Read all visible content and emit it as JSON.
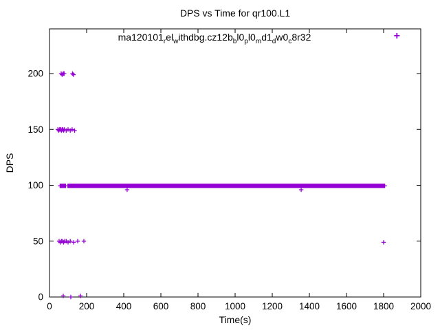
{
  "chart_data": {
    "type": "scatter",
    "title": "DPS vs Time for qr100.L1",
    "xlabel": "Time(s)",
    "ylabel": "DPS",
    "xlim": [
      0,
      2000
    ],
    "ylim": [
      0,
      240
    ],
    "xticks": [
      0,
      200,
      400,
      600,
      800,
      1000,
      1200,
      1400,
      1600,
      1800,
      2000
    ],
    "yticks": [
      0,
      50,
      100,
      150,
      200
    ],
    "grid": false,
    "axis_color": "#000000",
    "legend": {
      "position": "top-center-inside",
      "label_plain": "ma120101_rel_withdbg.cz12b_bl0_pl0_md1_dw0_c8r32",
      "label_parts": [
        {
          "text": "ma120101",
          "sub": false
        },
        {
          "text": "r",
          "sub": true
        },
        {
          "text": "el",
          "sub": false
        },
        {
          "text": "w",
          "sub": true
        },
        {
          "text": "ithdbg.cz12b",
          "sub": false
        },
        {
          "text": "b",
          "sub": true
        },
        {
          "text": "l0",
          "sub": false
        },
        {
          "text": "p",
          "sub": true
        },
        {
          "text": "l0",
          "sub": false
        },
        {
          "text": "m",
          "sub": true
        },
        {
          "text": "d1",
          "sub": false
        },
        {
          "text": "d",
          "sub": true
        },
        {
          "text": "w0",
          "sub": false
        },
        {
          "text": "c",
          "sub": true
        },
        {
          "text": "8r32",
          "sub": false
        }
      ]
    },
    "series": [
      {
        "name": "ma120101_rel_withdbg.cz12b_bl0_pl0_md1_dw0_c8r32",
        "color": "#9400D3",
        "marker": "plus",
        "dense_band_segments": [
          {
            "y": 99.5,
            "x_from": 57,
            "x_to": 88,
            "x_step": 3
          },
          {
            "y": 99.5,
            "x_from": 99,
            "x_to": 1806,
            "x_step": 3
          }
        ],
        "points": [
          [
            63,
            200
          ],
          [
            68,
            199
          ],
          [
            74,
            200
          ],
          [
            79,
            200
          ],
          [
            124,
            200
          ],
          [
            129,
            199
          ],
          [
            45,
            150
          ],
          [
            50,
            149
          ],
          [
            55,
            150
          ],
          [
            60,
            150
          ],
          [
            64,
            149
          ],
          [
            68,
            150
          ],
          [
            72,
            150
          ],
          [
            76,
            149
          ],
          [
            80,
            150
          ],
          [
            90,
            149
          ],
          [
            100,
            150
          ],
          [
            112,
            149
          ],
          [
            122,
            150
          ],
          [
            135,
            149
          ],
          [
            52,
            50
          ],
          [
            58,
            49
          ],
          [
            64,
            50
          ],
          [
            70,
            50
          ],
          [
            76,
            49
          ],
          [
            82,
            50
          ],
          [
            90,
            50
          ],
          [
            100,
            49
          ],
          [
            112,
            50
          ],
          [
            130,
            49
          ],
          [
            152,
            50
          ],
          [
            185,
            50
          ],
          [
            74,
            1
          ],
          [
            115,
            0
          ],
          [
            167,
            1
          ],
          [
            418,
            96
          ],
          [
            1356,
            96
          ],
          [
            1800,
            49
          ]
        ]
      }
    ]
  }
}
